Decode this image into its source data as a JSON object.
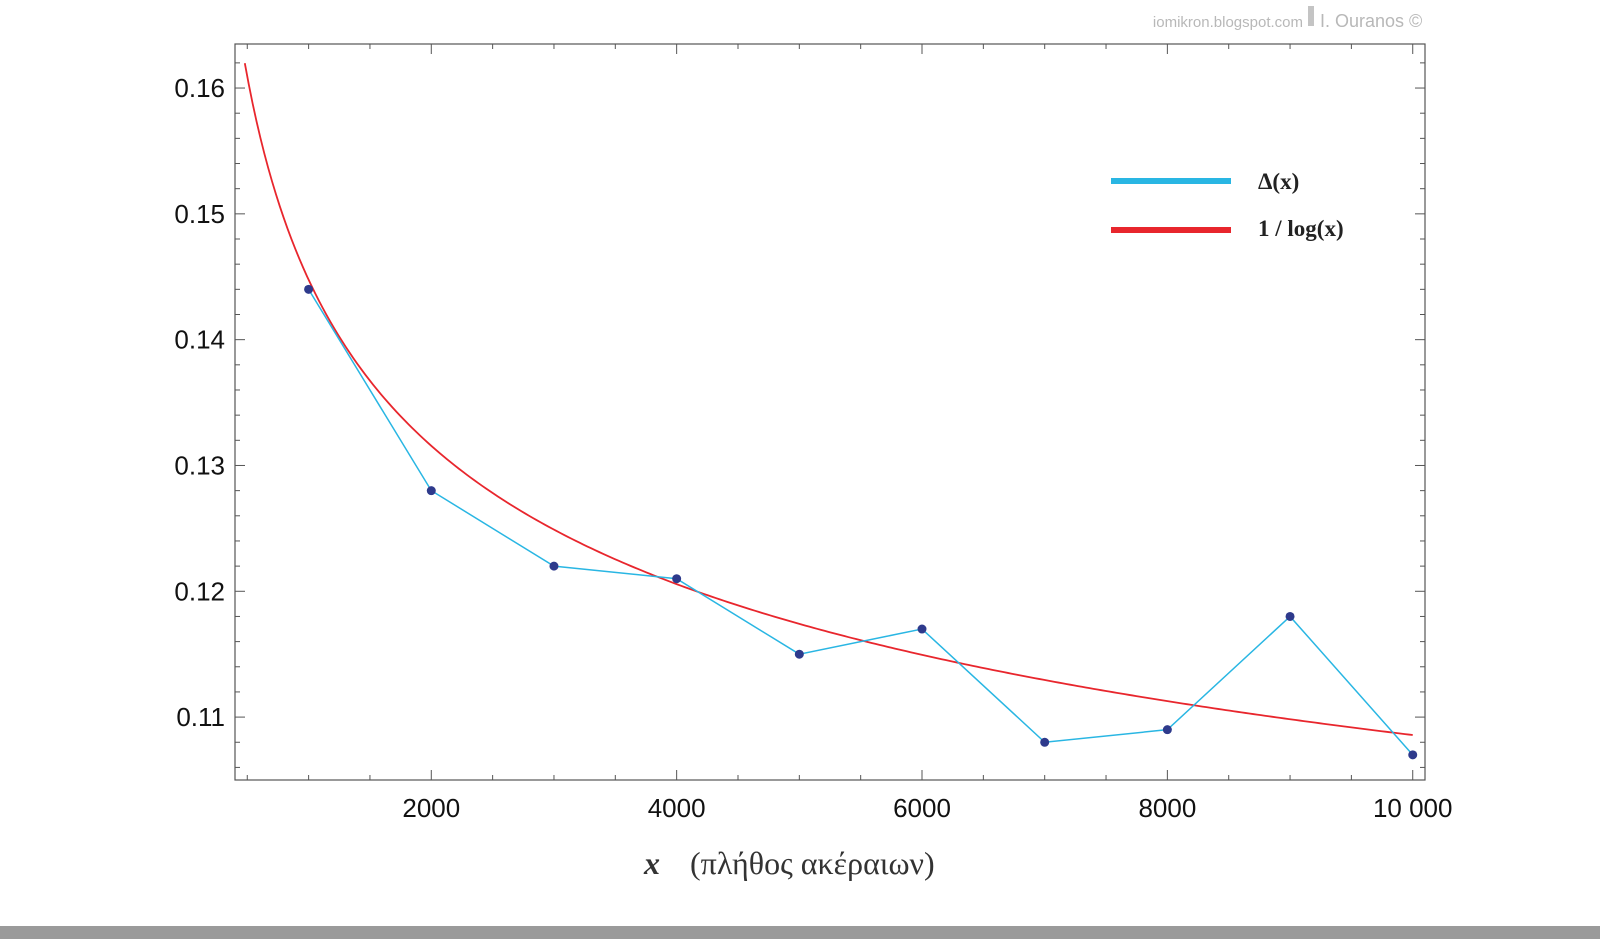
{
  "watermark": {
    "site": "iomikron.blogspot.com",
    "author": "I. Ouranos ©"
  },
  "chart_data": {
    "type": "line",
    "title": "",
    "xlabel_var": "x",
    "xlabel_text": "(πλήθος ακέραιων)",
    "ylabel": "",
    "xlim": [
      400,
      10100
    ],
    "ylim": [
      0.105,
      0.1635
    ],
    "x_ticks": [
      2000,
      4000,
      6000,
      8000,
      10000
    ],
    "x_tick_labels": [
      "2000",
      "4000",
      "6000",
      "8000",
      "10 000"
    ],
    "y_ticks": [
      0.11,
      0.12,
      0.13,
      0.14,
      0.15,
      0.16
    ],
    "y_tick_labels": [
      "0.11",
      "0.12",
      "0.13",
      "0.14",
      "0.15",
      "0.16"
    ],
    "grid": false,
    "legend_position": "top-right",
    "series": [
      {
        "name": "Δ(x)",
        "kind": "line-with-markers",
        "color": "#29b6e3",
        "marker_color": "#2e3a8c",
        "x": [
          1000,
          2000,
          3000,
          4000,
          5000,
          6000,
          7000,
          8000,
          9000,
          10000
        ],
        "y": [
          0.144,
          0.128,
          0.122,
          0.121,
          0.115,
          0.117,
          0.108,
          0.109,
          0.118,
          0.107
        ]
      },
      {
        "name": "1 / log(x)",
        "kind": "function",
        "function": "1/log(x)",
        "color": "#e8262d",
        "domain": [
          480,
          10000
        ]
      }
    ]
  }
}
